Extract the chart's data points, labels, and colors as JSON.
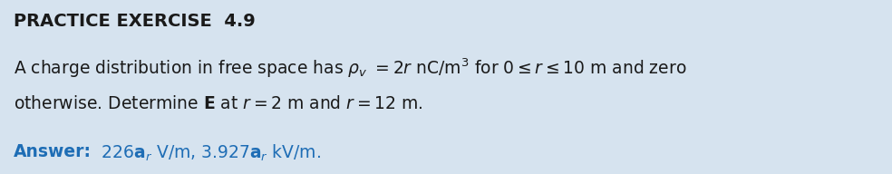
{
  "background_color": "#d6e3ef",
  "title": "PRACTICE EXERCISE  4.9",
  "title_fontsize": 14,
  "body_color": "#1a1a1a",
  "body_fontsize": 13.5,
  "answer_color": "#1e6db5",
  "answer_fontsize": 13.5,
  "fig_width": 9.84,
  "fig_height": 1.92,
  "dpi": 100
}
